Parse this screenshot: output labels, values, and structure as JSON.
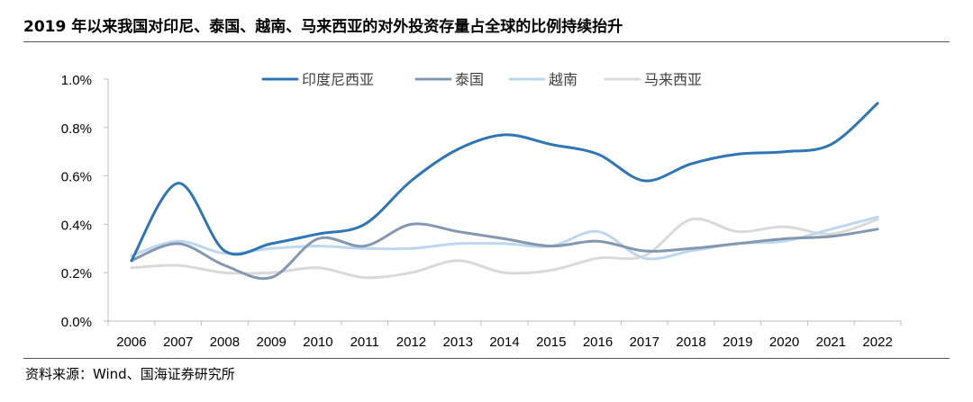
{
  "title": "2019 年以来我国对印尼、泰国、越南、马来西亚的对外投资存量占全球的比例持续抬升",
  "source": "资料来源：Wind、国海证券研究所",
  "chart_data": {
    "type": "line",
    "title": "",
    "xlabel": "",
    "ylabel": "",
    "categories": [
      "2006",
      "2007",
      "2008",
      "2009",
      "2010",
      "2011",
      "2012",
      "2013",
      "2014",
      "2015",
      "2016",
      "2017",
      "2018",
      "2019",
      "2020",
      "2021",
      "2022"
    ],
    "ylim": [
      0,
      1.0
    ],
    "yticks": [
      "0.0%",
      "0.2%",
      "0.4%",
      "0.6%",
      "0.8%",
      "1.0%"
    ],
    "grid": false,
    "legend_position": "top",
    "series": [
      {
        "name": "印度尼西亚",
        "color": "#2e75b6",
        "values": [
          0.25,
          0.57,
          0.29,
          0.32,
          0.36,
          0.4,
          0.58,
          0.71,
          0.77,
          0.73,
          0.69,
          0.58,
          0.65,
          0.69,
          0.7,
          0.73,
          0.9
        ]
      },
      {
        "name": "泰国",
        "color": "#8497b0",
        "values": [
          0.25,
          0.32,
          0.23,
          0.18,
          0.34,
          0.31,
          0.4,
          0.37,
          0.34,
          0.31,
          0.33,
          0.29,
          0.3,
          0.32,
          0.34,
          0.35,
          0.38
        ]
      },
      {
        "name": "越南",
        "color": "#bdd7ee",
        "values": [
          0.27,
          0.33,
          0.28,
          0.3,
          0.31,
          0.3,
          0.3,
          0.32,
          0.32,
          0.31,
          0.37,
          0.26,
          0.29,
          0.32,
          0.33,
          0.38,
          0.43
        ]
      },
      {
        "name": "马来西亚",
        "color": "#d9d9d9",
        "values": [
          0.22,
          0.23,
          0.2,
          0.2,
          0.22,
          0.18,
          0.2,
          0.25,
          0.2,
          0.21,
          0.26,
          0.27,
          0.42,
          0.37,
          0.39,
          0.36,
          0.42
        ]
      }
    ]
  }
}
